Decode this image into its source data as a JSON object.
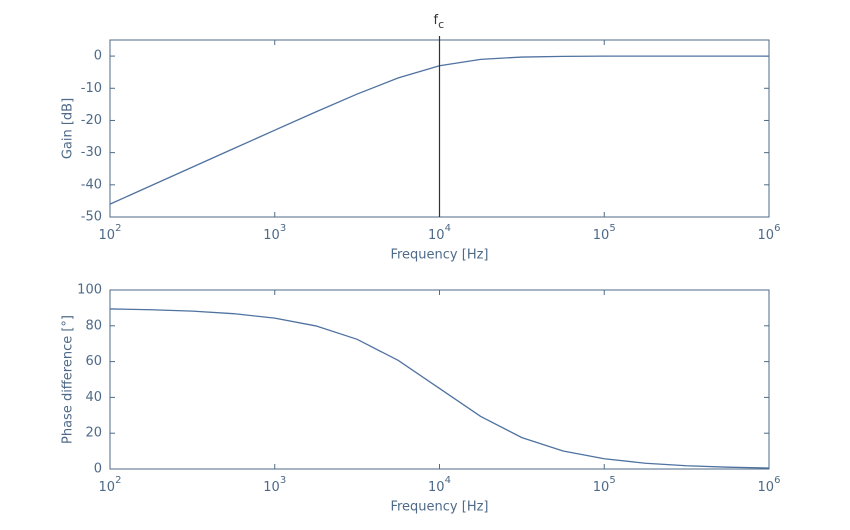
{
  "chart_data": [
    {
      "type": "line",
      "log_x": true,
      "xlabel": "Frequency [Hz]",
      "ylabel": "Gain [dB]",
      "xlim": [
        100,
        1000000
      ],
      "ylim": [
        -50,
        5
      ],
      "xticks": [
        {
          "value": 100,
          "label": "10",
          "exponent": "2"
        },
        {
          "value": 1000,
          "label": "10",
          "exponent": "3"
        },
        {
          "value": 10000,
          "label": "10",
          "exponent": "4"
        },
        {
          "value": 100000,
          "label": "10",
          "exponent": "5"
        },
        {
          "value": 1000000,
          "label": "10",
          "exponent": "6"
        }
      ],
      "yticks": [
        0,
        -10,
        -20,
        -30,
        -40,
        -50
      ],
      "x": [
        100,
        177.8,
        316.2,
        562.3,
        1000,
        1778,
        3162,
        5623,
        10000,
        17783,
        31623,
        56234,
        100000,
        177828,
        316228,
        562341,
        1000000
      ],
      "series": [
        {
          "color": "#4f72a0",
          "values": [
            -46.0,
            -40.25,
            -34.5,
            -28.76,
            -23.02,
            -17.33,
            -11.8,
            -6.78,
            -3.01,
            -1.02,
            -0.3,
            -0.08,
            -0.02,
            -0.01,
            0,
            0,
            0
          ]
        }
      ],
      "annotation": {
        "label": "f",
        "subscript": "c",
        "x": 10000,
        "color": "#333333"
      }
    },
    {
      "type": "line",
      "log_x": true,
      "xlabel": "Frequency [Hz]",
      "ylabel": "Phase difference [°]",
      "xlim": [
        100,
        1000000
      ],
      "ylim": [
        0,
        100
      ],
      "xticks": [
        {
          "value": 100,
          "label": "10",
          "exponent": "2"
        },
        {
          "value": 1000,
          "label": "10",
          "exponent": "3"
        },
        {
          "value": 10000,
          "label": "10",
          "exponent": "4"
        },
        {
          "value": 100000,
          "label": "10",
          "exponent": "5"
        },
        {
          "value": 1000000,
          "label": "10",
          "exponent": "6"
        }
      ],
      "yticks": [
        0,
        20,
        40,
        60,
        80,
        100
      ],
      "x": [
        100,
        177.8,
        316.2,
        562.3,
        1000,
        1778,
        3162,
        5623,
        10000,
        17783,
        31623,
        56234,
        100000,
        177828,
        316228,
        562341,
        1000000
      ],
      "series": [
        {
          "color": "#4f72a0",
          "values": [
            89.43,
            88.98,
            88.19,
            86.78,
            84.29,
            79.92,
            72.45,
            60.64,
            45,
            29.36,
            17.55,
            10.08,
            5.71,
            3.22,
            1.81,
            1.02,
            0.57
          ]
        }
      ]
    }
  ]
}
